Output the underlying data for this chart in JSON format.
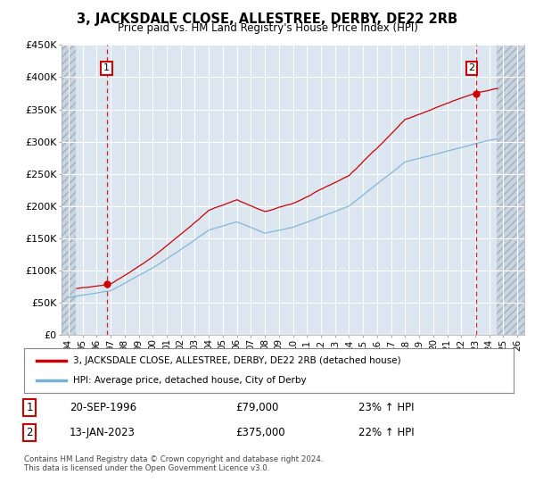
{
  "title": "3, JACKSDALE CLOSE, ALLESTREE, DERBY, DE22 2RB",
  "subtitle": "Price paid vs. HM Land Registry's House Price Index (HPI)",
  "background_color": "#ffffff",
  "plot_bg_color": "#dce6f1",
  "grid_color": "#ffffff",
  "red_line_color": "#cc0000",
  "blue_line_color": "#7ab0d4",
  "point1_x": 1996.72,
  "point1_y": 79000,
  "point2_x": 2023.04,
  "point2_y": 375000,
  "xmin": 1993.5,
  "xmax": 2026.5,
  "hatch_left_end": 1994.5,
  "hatch_right_start": 2024.5,
  "ymin": 0,
  "ymax": 450000,
  "yticks": [
    0,
    50000,
    100000,
    150000,
    200000,
    250000,
    300000,
    350000,
    400000,
    450000
  ],
  "ytick_labels": [
    "£0",
    "£50K",
    "£100K",
    "£150K",
    "£200K",
    "£250K",
    "£300K",
    "£350K",
    "£400K",
    "£450K"
  ],
  "xtick_years": [
    1994,
    1995,
    1996,
    1997,
    1998,
    1999,
    2000,
    2001,
    2002,
    2003,
    2004,
    2005,
    2006,
    2007,
    2008,
    2009,
    2010,
    2011,
    2012,
    2013,
    2014,
    2015,
    2016,
    2017,
    2018,
    2019,
    2020,
    2021,
    2022,
    2023,
    2024,
    2025,
    2026
  ],
  "legend_line1": "3, JACKSDALE CLOSE, ALLESTREE, DERBY, DE22 2RB (detached house)",
  "legend_line2": "HPI: Average price, detached house, City of Derby",
  "annotation1_date": "20-SEP-1996",
  "annotation1_price": "£79,000",
  "annotation1_hpi": "23% ↑ HPI",
  "annotation2_date": "13-JAN-2023",
  "annotation2_price": "£375,000",
  "annotation2_hpi": "22% ↑ HPI",
  "footer": "Contains HM Land Registry data © Crown copyright and database right 2024.\nThis data is licensed under the Open Government Licence v3.0."
}
